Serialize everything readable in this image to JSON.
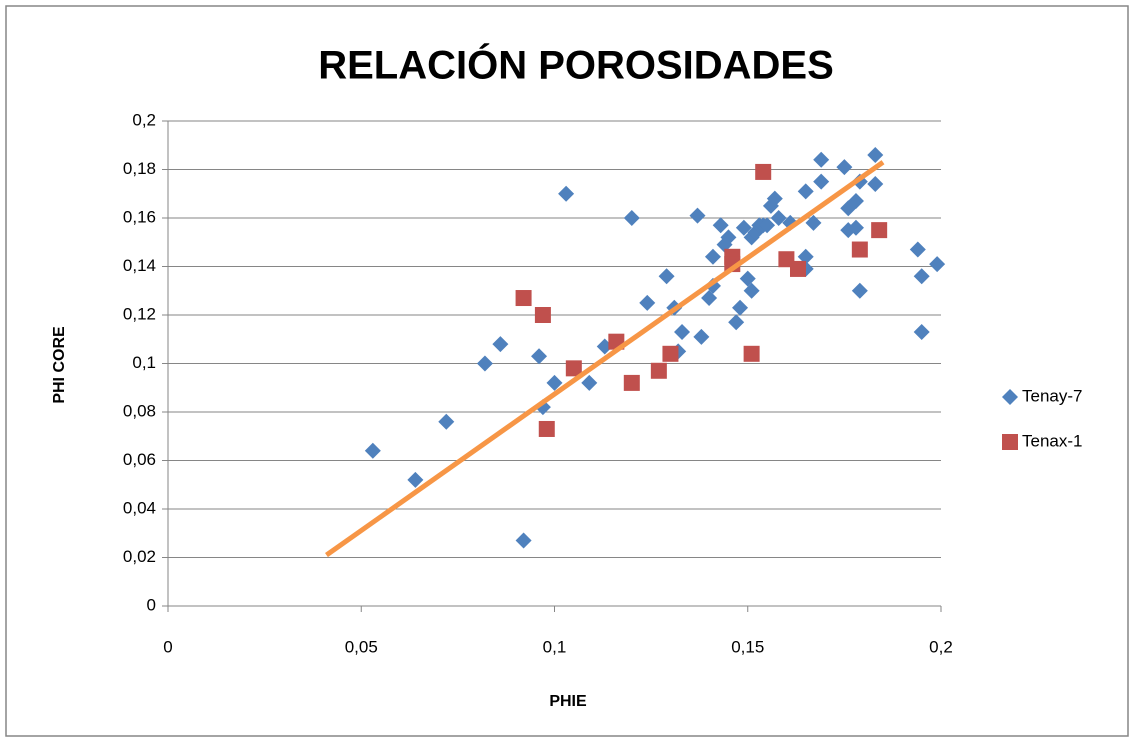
{
  "chart_data": {
    "type": "scatter",
    "title": "RELACIÓN POROSIDADES",
    "x_label": "PHIE",
    "y_label": "PHI CORE",
    "xlim": [
      0,
      0.2
    ],
    "ylim": [
      0,
      0.2
    ],
    "xticks": [
      0,
      {
        "value": 0.05,
        "label": "0,05"
      },
      {
        "value": 0.1,
        "label": "0,1"
      },
      {
        "value": 0.15,
        "label": "0,15"
      },
      {
        "value": 0.2,
        "label": "0,2"
      }
    ],
    "yticks": [
      0,
      {
        "value": 0.02,
        "label": "0,02"
      },
      {
        "value": 0.04,
        "label": "0,04"
      },
      {
        "value": 0.06,
        "label": "0,06"
      },
      {
        "value": 0.08,
        "label": "0,08"
      },
      {
        "value": 0.1,
        "label": "0,1"
      },
      {
        "value": 0.12,
        "label": "0,12"
      },
      {
        "value": 0.14,
        "label": "0,14"
      },
      {
        "value": 0.16,
        "label": "0,16"
      },
      {
        "value": 0.18,
        "label": "0,18"
      },
      {
        "value": 0.2,
        "label": "0,2"
      }
    ],
    "grid": true,
    "legend_position": "right",
    "series": [
      {
        "name": "Tenay-7",
        "color": "#4f81bd",
        "marker": "diamond",
        "x": [
          0.053,
          0.064,
          0.072,
          0.082,
          0.086,
          0.092,
          0.096,
          0.097,
          0.1,
          0.103,
          0.109,
          0.113,
          0.12,
          0.124,
          0.129,
          0.132,
          0.131,
          0.133,
          0.137,
          0.138,
          0.14,
          0.141,
          0.141,
          0.143,
          0.144,
          0.145,
          0.147,
          0.148,
          0.149,
          0.15,
          0.151,
          0.151,
          0.152,
          0.153,
          0.154,
          0.155,
          0.156,
          0.157,
          0.158,
          0.161,
          0.165,
          0.165,
          0.165,
          0.167,
          0.169,
          0.169,
          0.175,
          0.176,
          0.176,
          0.178,
          0.178,
          0.179,
          0.179,
          0.183,
          0.183,
          0.194,
          0.195,
          0.195,
          0.199
        ],
        "y": [
          0.064,
          0.052,
          0.076,
          0.1,
          0.108,
          0.027,
          0.103,
          0.082,
          0.092,
          0.17,
          0.092,
          0.107,
          0.16,
          0.125,
          0.136,
          0.105,
          0.123,
          0.113,
          0.161,
          0.111,
          0.127,
          0.132,
          0.144,
          0.157,
          0.149,
          0.152,
          0.117,
          0.123,
          0.156,
          0.135,
          0.152,
          0.13,
          0.154,
          0.157,
          0.157,
          0.157,
          0.165,
          0.168,
          0.16,
          0.158,
          0.171,
          0.144,
          0.139,
          0.158,
          0.184,
          0.175,
          0.181,
          0.164,
          0.155,
          0.167,
          0.156,
          0.13,
          0.175,
          0.174,
          0.186,
          0.147,
          0.136,
          0.113,
          0.141
        ]
      },
      {
        "name": "Tenax-1",
        "color": "#c0504d",
        "marker": "square",
        "x": [
          0.092,
          0.097,
          0.098,
          0.105,
          0.116,
          0.12,
          0.127,
          0.13,
          0.146,
          0.146,
          0.151,
          0.154,
          0.16,
          0.163,
          0.179,
          0.184
        ],
        "y": [
          0.127,
          0.12,
          0.073,
          0.098,
          0.109,
          0.092,
          0.097,
          0.104,
          0.144,
          0.141,
          0.104,
          0.179,
          0.143,
          0.139,
          0.147,
          0.155
        ]
      }
    ],
    "trendline": {
      "color": "#f79646",
      "x": [
        0.041,
        0.185
      ],
      "y": [
        0.021,
        0.183
      ]
    }
  }
}
